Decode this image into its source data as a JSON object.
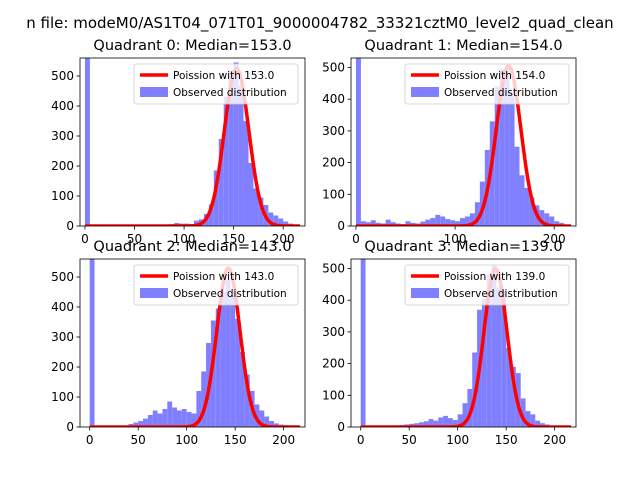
{
  "figure_title": "n file: modeM0/AS1T04_071T01_9000004782_33321cztM0_level2_quad_clean",
  "chart_data": [
    {
      "type": "bar",
      "title": "Quadrant 0: Median=153.0",
      "xlim": [
        -5,
        222
      ],
      "ylim": [
        0,
        560
      ],
      "xticks": [
        0,
        50,
        100,
        150,
        200
      ],
      "yticks": [
        0,
        100,
        200,
        300,
        400,
        500
      ],
      "legend": {
        "position": "top-right",
        "line_label": "Poission with 153.0",
        "bar_label": "Observed distribution"
      },
      "poisson_mean": 153.0,
      "poisson_peak": 525,
      "bin_width": 5,
      "zero_bar": 560,
      "observed": {
        "bin_starts": [
          85,
          90,
          95,
          100,
          105,
          110,
          115,
          120,
          125,
          130,
          135,
          140,
          145,
          150,
          155,
          160,
          165,
          170,
          175,
          180,
          185,
          190,
          195,
          200,
          205,
          210
        ],
        "counts": [
          6,
          10,
          8,
          8,
          6,
          18,
          22,
          40,
          72,
          185,
          290,
          430,
          520,
          545,
          470,
          350,
          210,
          125,
          95,
          70,
          45,
          35,
          25,
          15,
          8,
          4
        ]
      }
    },
    {
      "type": "bar",
      "title": "Quadrant 1: Median=154.0",
      "xlim": [
        -5,
        222
      ],
      "ylim": [
        0,
        530
      ],
      "xticks": [
        0,
        100,
        200
      ],
      "yticks": [
        0,
        100,
        200,
        300,
        400,
        500
      ],
      "legend": {
        "position": "top-right",
        "line_label": "Poission with 154.0",
        "bar_label": "Observed distribution"
      },
      "poisson_mean": 154.0,
      "poisson_peak": 505,
      "bin_width": 5,
      "zero_bar": 530,
      "observed": {
        "bin_starts": [
          5,
          10,
          15,
          20,
          25,
          30,
          35,
          40,
          45,
          50,
          55,
          60,
          65,
          70,
          75,
          80,
          85,
          90,
          95,
          100,
          105,
          110,
          115,
          120,
          125,
          130,
          135,
          140,
          145,
          150,
          155,
          160,
          165,
          170,
          175,
          180,
          185,
          190,
          195,
          200,
          205
        ],
        "counts": [
          15,
          12,
          18,
          10,
          8,
          20,
          12,
          8,
          6,
          15,
          10,
          8,
          14,
          20,
          25,
          35,
          30,
          22,
          18,
          15,
          25,
          30,
          40,
          75,
          140,
          240,
          330,
          440,
          495,
          500,
          420,
          250,
          160,
          120,
          90,
          65,
          50,
          40,
          30,
          15,
          10
        ]
      }
    },
    {
      "type": "bar",
      "title": "Quadrant 2: Median=143.0",
      "xlim": [
        -10,
        222
      ],
      "ylim": [
        0,
        560
      ],
      "xticks": [
        0,
        50,
        100,
        150,
        200
      ],
      "yticks": [
        0,
        100,
        200,
        300,
        400,
        500
      ],
      "legend": {
        "position": "top-right",
        "line_label": "Poission with 143.0",
        "bar_label": "Observed distribution"
      },
      "poisson_mean": 143.0,
      "poisson_peak": 530,
      "bin_width": 5,
      "zero_bar": 560,
      "observed": {
        "bin_starts": [
          40,
          45,
          50,
          55,
          60,
          65,
          70,
          75,
          80,
          85,
          90,
          95,
          100,
          105,
          110,
          115,
          120,
          125,
          130,
          135,
          140,
          145,
          150,
          155,
          160,
          165,
          170,
          175,
          180,
          185,
          190,
          195,
          200
        ],
        "counts": [
          10,
          15,
          20,
          28,
          40,
          55,
          45,
          60,
          85,
          65,
          55,
          60,
          50,
          45,
          120,
          185,
          280,
          355,
          395,
          450,
          490,
          440,
          360,
          250,
          175,
          120,
          75,
          55,
          35,
          20,
          12,
          8,
          6
        ]
      }
    },
    {
      "type": "bar",
      "title": "Quadrant 3: Median=139.0",
      "xlim": [
        -10,
        222
      ],
      "ylim": [
        0,
        530
      ],
      "xticks": [
        0,
        50,
        100,
        150,
        200
      ],
      "yticks": [
        0,
        100,
        200,
        300,
        400,
        500
      ],
      "legend": {
        "position": "top-right",
        "line_label": "Poission with 139.0",
        "bar_label": "Observed distribution"
      },
      "poisson_mean": 139.0,
      "poisson_peak": 500,
      "bin_width": 5,
      "zero_bar": 530,
      "observed": {
        "bin_starts": [
          40,
          45,
          50,
          55,
          60,
          65,
          70,
          75,
          80,
          85,
          90,
          95,
          100,
          105,
          110,
          115,
          120,
          125,
          130,
          135,
          140,
          145,
          150,
          155,
          160,
          165,
          170,
          175,
          180,
          185,
          190
        ],
        "counts": [
          6,
          8,
          10,
          12,
          15,
          18,
          25,
          20,
          30,
          35,
          28,
          22,
          40,
          75,
          120,
          235,
          370,
          405,
          480,
          510,
          440,
          430,
          250,
          190,
          170,
          90,
          50,
          40,
          20,
          12,
          8
        ]
      }
    }
  ]
}
